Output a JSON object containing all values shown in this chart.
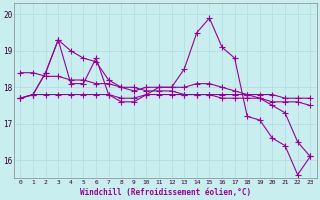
{
  "xlabel": "Windchill (Refroidissement éolien,°C)",
  "bg_color": "#c8eef0",
  "line_color": "#990099",
  "grid_color": "#b8dfe0",
  "xlim": [
    -0.5,
    23.5
  ],
  "ylim": [
    15.5,
    20.3
  ],
  "yticks": [
    16,
    17,
    18,
    19,
    20
  ],
  "xticks": [
    0,
    1,
    2,
    3,
    4,
    5,
    6,
    7,
    8,
    9,
    10,
    11,
    12,
    13,
    14,
    15,
    16,
    17,
    18,
    19,
    20,
    21,
    22,
    23
  ],
  "series": [
    {
      "x": [
        0,
        1,
        2,
        3,
        4,
        5,
        6,
        7,
        8,
        9,
        10,
        11,
        12,
        13,
        14,
        15,
        16,
        17,
        18,
        19,
        20,
        21,
        22,
        23
      ],
      "y": [
        17.7,
        17.8,
        18.4,
        19.3,
        18.1,
        18.1,
        18.8,
        17.8,
        17.6,
        17.6,
        17.8,
        18.0,
        18.0,
        18.5,
        19.5,
        19.9,
        19.1,
        18.8,
        17.2,
        17.1,
        16.6,
        16.4,
        15.6,
        16.1
      ]
    },
    {
      "x": [
        0,
        1,
        2,
        3,
        4,
        5,
        6,
        7,
        8,
        9,
        10,
        11,
        12,
        13,
        14,
        15,
        16,
        17,
        18,
        19,
        20,
        21,
        22,
        23
      ],
      "y": [
        17.7,
        17.8,
        18.4,
        19.3,
        19.0,
        18.8,
        18.7,
        18.2,
        18.0,
        17.9,
        18.0,
        18.0,
        18.0,
        18.0,
        18.1,
        18.1,
        18.0,
        17.9,
        17.8,
        17.7,
        17.5,
        17.3,
        16.5,
        16.1
      ]
    },
    {
      "x": [
        0,
        1,
        2,
        3,
        4,
        5,
        6,
        7,
        8,
        9,
        10,
        11,
        12,
        13,
        14,
        15,
        16,
        17,
        18,
        19,
        20,
        21,
        22,
        23
      ],
      "y": [
        17.7,
        17.8,
        17.8,
        17.8,
        17.8,
        17.8,
        17.8,
        17.8,
        17.7,
        17.7,
        17.8,
        17.8,
        17.8,
        17.8,
        17.8,
        17.8,
        17.8,
        17.8,
        17.8,
        17.8,
        17.8,
        17.7,
        17.7,
        17.7
      ]
    },
    {
      "x": [
        0,
        1,
        2,
        3,
        4,
        5,
        6,
        7,
        8,
        9,
        10,
        11,
        12,
        13,
        14,
        15,
        16,
        17,
        18,
        19,
        20,
        21,
        22,
        23
      ],
      "y": [
        18.4,
        18.4,
        18.3,
        18.3,
        18.2,
        18.2,
        18.1,
        18.1,
        18.0,
        18.0,
        17.9,
        17.9,
        17.9,
        17.8,
        17.8,
        17.8,
        17.7,
        17.7,
        17.7,
        17.7,
        17.6,
        17.6,
        17.6,
        17.5
      ]
    }
  ]
}
